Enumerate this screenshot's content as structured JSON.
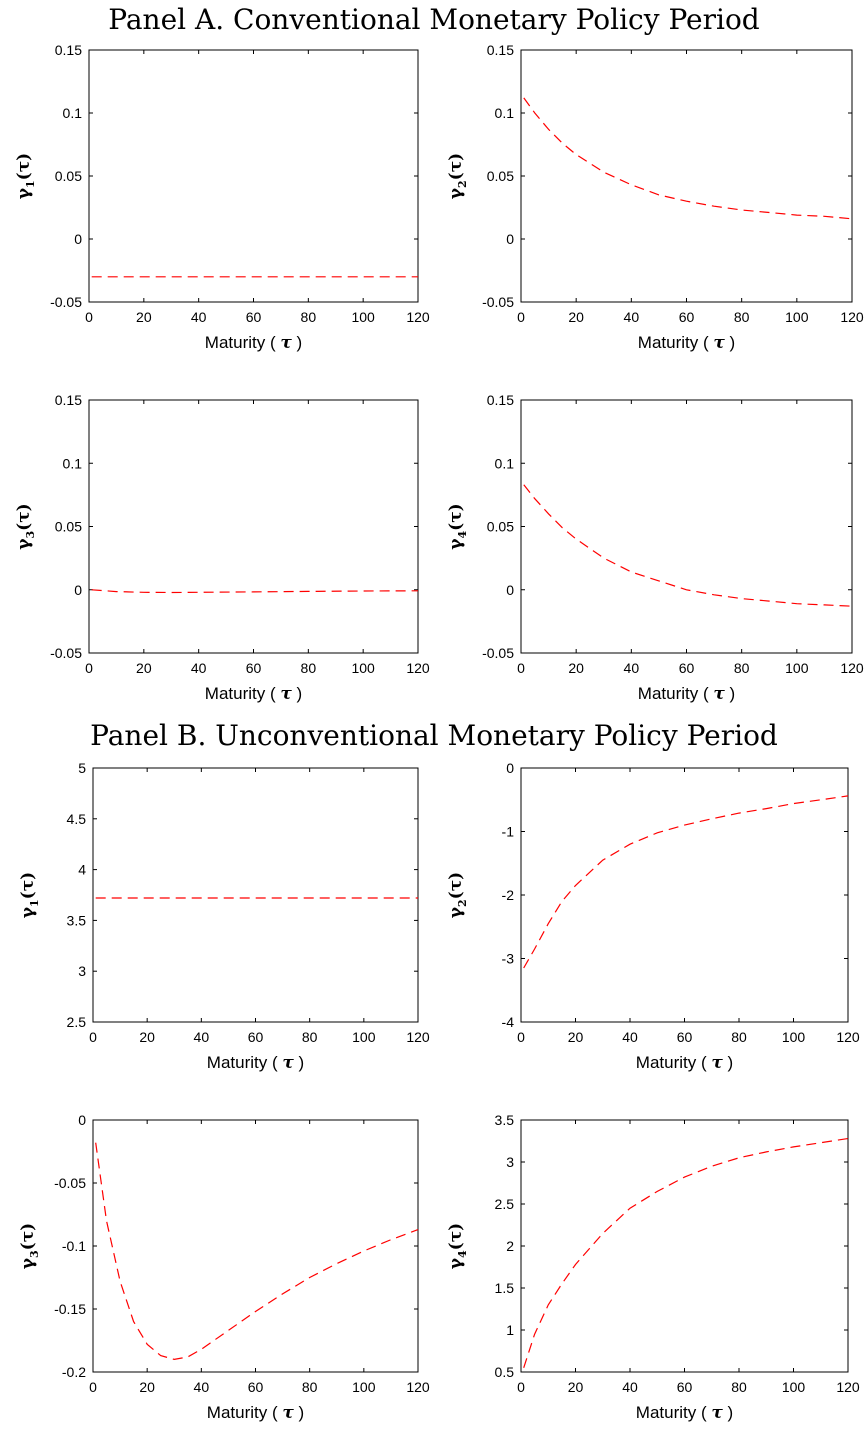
{
  "panels": [
    {
      "title": "Panel A. Conventional Monetary Policy Period"
    },
    {
      "title": "Panel B. Unconventional Monetary Policy Period"
    }
  ],
  "colors": {
    "curve": "#ff0000",
    "axes": "#000000"
  },
  "chart_data": [
    {
      "type": "line",
      "panel": "A",
      "ylabel_main": "γ",
      "ylabel_sub": "1",
      "ylabel_arg": "(τ)",
      "xlabel_text": "Maturity ( ",
      "xlabel_symbol": "τ",
      "xlabel_end": ")",
      "xlim": [
        0,
        120
      ],
      "ylim": [
        -0.05,
        0.15
      ],
      "xticks": [
        0,
        20,
        40,
        60,
        80,
        100,
        120
      ],
      "yticks": [
        -0.05,
        0,
        0.05,
        0.1,
        0.15
      ],
      "ytick_labels": [
        "-0.05",
        "0",
        "0.05",
        "0.1",
        "0.15"
      ],
      "x": [
        1,
        20,
        40,
        60,
        80,
        100,
        120
      ],
      "y": [
        -0.03,
        -0.03,
        -0.03,
        -0.03,
        -0.03,
        -0.03,
        -0.03
      ]
    },
    {
      "type": "line",
      "panel": "A",
      "ylabel_main": "γ",
      "ylabel_sub": "2",
      "ylabel_arg": "(τ)",
      "xlabel_text": "Maturity ( ",
      "xlabel_symbol": "τ",
      "xlabel_end": ")",
      "xlim": [
        0,
        120
      ],
      "ylim": [
        -0.05,
        0.15
      ],
      "xticks": [
        0,
        20,
        40,
        60,
        80,
        100,
        120
      ],
      "yticks": [
        -0.05,
        0,
        0.05,
        0.1,
        0.15
      ],
      "ytick_labels": [
        "-0.05",
        "0",
        "0.05",
        "0.1",
        "0.15"
      ],
      "x": [
        1,
        5,
        10,
        15,
        20,
        30,
        40,
        50,
        60,
        70,
        80,
        90,
        100,
        110,
        120
      ],
      "y": [
        0.112,
        0.1,
        0.087,
        0.076,
        0.067,
        0.053,
        0.043,
        0.035,
        0.03,
        0.026,
        0.023,
        0.021,
        0.019,
        0.018,
        0.016
      ]
    },
    {
      "type": "line",
      "panel": "A",
      "ylabel_main": "γ",
      "ylabel_sub": "3",
      "ylabel_arg": "(τ)",
      "xlabel_text": "Maturity ( ",
      "xlabel_symbol": "τ",
      "xlabel_end": ")",
      "xlim": [
        0,
        120
      ],
      "ylim": [
        -0.05,
        0.15
      ],
      "xticks": [
        0,
        20,
        40,
        60,
        80,
        100,
        120
      ],
      "yticks": [
        -0.05,
        0,
        0.05,
        0.1,
        0.15
      ],
      "ytick_labels": [
        "-0.05",
        "0",
        "0.05",
        "0.1",
        "0.15"
      ],
      "x": [
        1,
        10,
        20,
        30,
        40,
        60,
        80,
        100,
        120
      ],
      "y": [
        0.0,
        -0.0015,
        -0.002,
        -0.0022,
        -0.002,
        -0.0017,
        -0.0013,
        -0.001,
        -0.0008
      ]
    },
    {
      "type": "line",
      "panel": "A",
      "ylabel_main": "γ",
      "ylabel_sub": "4",
      "ylabel_arg": "(τ)",
      "xlabel_text": "Maturity ( ",
      "xlabel_symbol": "τ",
      "xlabel_end": ")",
      "xlim": [
        0,
        120
      ],
      "ylim": [
        -0.05,
        0.15
      ],
      "xticks": [
        0,
        20,
        40,
        60,
        80,
        100,
        120
      ],
      "yticks": [
        -0.05,
        0,
        0.05,
        0.1,
        0.15
      ],
      "ytick_labels": [
        "-0.05",
        "0",
        "0.05",
        "0.1",
        "0.15"
      ],
      "x": [
        1,
        5,
        10,
        15,
        20,
        30,
        40,
        50,
        60,
        70,
        80,
        90,
        100,
        110,
        120
      ],
      "y": [
        0.083,
        0.072,
        0.06,
        0.049,
        0.04,
        0.025,
        0.014,
        0.007,
        0.0,
        -0.004,
        -0.007,
        -0.009,
        -0.011,
        -0.012,
        -0.013
      ]
    },
    {
      "type": "line",
      "panel": "B",
      "ylabel_main": "γ",
      "ylabel_sub": "1",
      "ylabel_arg": "(τ)",
      "xlabel_text": "Maturity ( ",
      "xlabel_symbol": "τ",
      "xlabel_end": ")",
      "xlim": [
        0,
        120
      ],
      "ylim": [
        2.5,
        5
      ],
      "xticks": [
        0,
        20,
        40,
        60,
        80,
        100,
        120
      ],
      "yticks": [
        2.5,
        3,
        3.5,
        4,
        4.5,
        5
      ],
      "ytick_labels": [
        "2.5",
        "3",
        "3.5",
        "4",
        "4.5",
        "5"
      ],
      "x": [
        1,
        20,
        40,
        60,
        80,
        100,
        120
      ],
      "y": [
        3.72,
        3.72,
        3.72,
        3.72,
        3.72,
        3.72,
        3.72
      ]
    },
    {
      "type": "line",
      "panel": "B",
      "ylabel_main": "γ",
      "ylabel_sub": "2",
      "ylabel_arg": "(τ)",
      "xlabel_text": "Maturity ( ",
      "xlabel_symbol": "τ",
      "xlabel_end": ")",
      "xlim": [
        0,
        120
      ],
      "ylim": [
        -4,
        0
      ],
      "xticks": [
        0,
        20,
        40,
        60,
        80,
        100,
        120
      ],
      "yticks": [
        -4,
        -3,
        -2,
        -1,
        0
      ],
      "ytick_labels": [
        "-4",
        "-3",
        "-2",
        "-1",
        "0"
      ],
      "x": [
        1,
        5,
        10,
        15,
        20,
        30,
        40,
        50,
        60,
        70,
        80,
        90,
        100,
        110,
        120
      ],
      "y": [
        -3.15,
        -2.85,
        -2.45,
        -2.1,
        -1.85,
        -1.45,
        -1.2,
        -1.02,
        -0.9,
        -0.8,
        -0.71,
        -0.64,
        -0.56,
        -0.5,
        -0.44
      ]
    },
    {
      "type": "line",
      "panel": "B",
      "ylabel_main": "γ",
      "ylabel_sub": "3",
      "ylabel_arg": "(τ)",
      "xlabel_text": "Maturity ( ",
      "xlabel_symbol": "τ",
      "xlabel_end": ")",
      "xlim": [
        0,
        120
      ],
      "ylim": [
        -0.2,
        0
      ],
      "xticks": [
        0,
        20,
        40,
        60,
        80,
        100,
        120
      ],
      "yticks": [
        -0.2,
        -0.15,
        -0.1,
        -0.05,
        0
      ],
      "ytick_labels": [
        "-0.2",
        "-0.15",
        "-0.1",
        "-0.05",
        "0"
      ],
      "x": [
        1,
        5,
        10,
        15,
        20,
        25,
        30,
        35,
        40,
        50,
        60,
        70,
        80,
        90,
        100,
        110,
        120
      ],
      "y": [
        -0.018,
        -0.08,
        -0.128,
        -0.16,
        -0.178,
        -0.187,
        -0.19,
        -0.188,
        -0.182,
        -0.167,
        -0.152,
        -0.138,
        -0.125,
        -0.114,
        -0.104,
        -0.095,
        -0.087
      ]
    },
    {
      "type": "line",
      "panel": "B",
      "ylabel_main": "γ",
      "ylabel_sub": "4",
      "ylabel_arg": "(τ)",
      "xlabel_text": "Maturity ( ",
      "xlabel_symbol": "τ",
      "xlabel_end": ")",
      "xlim": [
        0,
        120
      ],
      "ylim": [
        0.5,
        3.5
      ],
      "xticks": [
        0,
        20,
        40,
        60,
        80,
        100,
        120
      ],
      "yticks": [
        0.5,
        1,
        1.5,
        2,
        2.5,
        3,
        3.5
      ],
      "ytick_labels": [
        "0.5",
        "1",
        "1.5",
        "2",
        "2.5",
        "3",
        "3.5"
      ],
      "x": [
        1,
        5,
        10,
        15,
        20,
        30,
        40,
        50,
        60,
        70,
        80,
        90,
        100,
        110,
        120
      ],
      "y": [
        0.55,
        0.95,
        1.3,
        1.55,
        1.78,
        2.15,
        2.45,
        2.65,
        2.82,
        2.95,
        3.05,
        3.12,
        3.18,
        3.23,
        3.28
      ]
    }
  ]
}
